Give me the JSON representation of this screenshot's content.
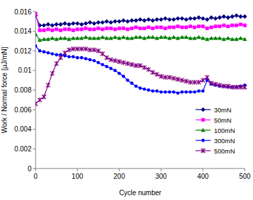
{
  "chart_data": {
    "type": "line",
    "x_label": "Cycle number",
    "y_label": "Work / Normal force [µJ/mN]",
    "x": [
      0,
      10,
      20,
      30,
      40,
      50,
      60,
      70,
      80,
      90,
      100,
      110,
      120,
      130,
      140,
      150,
      160,
      170,
      180,
      190,
      200,
      210,
      220,
      230,
      240,
      250,
      260,
      270,
      280,
      290,
      300,
      310,
      320,
      330,
      340,
      350,
      360,
      370,
      380,
      390,
      400,
      410,
      420,
      430,
      440,
      450,
      460,
      470,
      480,
      490,
      500
    ],
    "xlim": [
      0,
      500
    ],
    "xticks": [
      0,
      100,
      200,
      300,
      400,
      500
    ],
    "ylim": [
      0,
      0.016
    ],
    "yticks": [
      0,
      0.002,
      0.004,
      0.006,
      0.008,
      0.01,
      0.012,
      0.014,
      0.016
    ],
    "grid": false,
    "legend": "lower right",
    "series": [
      {
        "name": "30mN",
        "color": "#000080",
        "marker": "diamond",
        "line_style": "solid",
        "values": [
          0.0156,
          0.0146,
          0.0146,
          0.0147,
          0.0146,
          0.0147,
          0.0147,
          0.0148,
          0.0147,
          0.0148,
          0.0148,
          0.0147,
          0.0148,
          0.0149,
          0.0148,
          0.0149,
          0.0149,
          0.015,
          0.0149,
          0.015,
          0.015,
          0.0151,
          0.015,
          0.0151,
          0.0151,
          0.0152,
          0.0151,
          0.0152,
          0.0151,
          0.0152,
          0.0152,
          0.0153,
          0.0152,
          0.0152,
          0.0153,
          0.0153,
          0.0152,
          0.0153,
          0.0153,
          0.0154,
          0.0153,
          0.0152,
          0.0154,
          0.0153,
          0.0154,
          0.0155,
          0.0154,
          0.0155,
          0.0156,
          0.0155,
          0.0155
        ]
      },
      {
        "name": "50mN",
        "color": "#ff00ff",
        "marker": "square",
        "line_style": "solid",
        "values": [
          0.0158,
          0.0141,
          0.0141,
          0.0142,
          0.0141,
          0.0142,
          0.0141,
          0.0142,
          0.0142,
          0.0141,
          0.0142,
          0.0142,
          0.0143,
          0.0142,
          0.0142,
          0.0143,
          0.0142,
          0.0143,
          0.0143,
          0.0142,
          0.0143,
          0.0143,
          0.0142,
          0.0143,
          0.0144,
          0.0143,
          0.0143,
          0.0144,
          0.0143,
          0.0144,
          0.0144,
          0.0143,
          0.0144,
          0.0144,
          0.0145,
          0.0144,
          0.0144,
          0.0145,
          0.0144,
          0.0145,
          0.0145,
          0.0143,
          0.0144,
          0.0145,
          0.0145,
          0.0146,
          0.0145,
          0.0146,
          0.0146,
          0.0147,
          0.0146
        ]
      },
      {
        "name": "100mN",
        "color": "#008000",
        "marker": "triangle",
        "line_style": "solid",
        "values": [
          0.0137,
          0.0131,
          0.0132,
          0.0132,
          0.0133,
          0.0132,
          0.0133,
          0.0133,
          0.0132,
          0.0133,
          0.0133,
          0.0133,
          0.0134,
          0.0133,
          0.0133,
          0.0133,
          0.0134,
          0.0133,
          0.0133,
          0.0134,
          0.0133,
          0.0134,
          0.0133,
          0.0133,
          0.0134,
          0.0134,
          0.0133,
          0.0134,
          0.0134,
          0.0133,
          0.0134,
          0.0134,
          0.0133,
          0.0134,
          0.0133,
          0.0134,
          0.0134,
          0.0133,
          0.0133,
          0.0134,
          0.0133,
          0.0132,
          0.0133,
          0.0133,
          0.0133,
          0.0132,
          0.0133,
          0.0132,
          0.0132,
          0.0133,
          0.0132
        ]
      },
      {
        "name": "300mN",
        "color": "#0000ff",
        "marker": "circle",
        "line_style": "solid",
        "values": [
          0.0125,
          0.012,
          0.0119,
          0.0118,
          0.0117,
          0.0116,
          0.0116,
          0.0115,
          0.0114,
          0.0114,
          0.0113,
          0.0113,
          0.0112,
          0.0111,
          0.011,
          0.0108,
          0.0106,
          0.0104,
          0.0102,
          0.01,
          0.0097,
          0.0094,
          0.009,
          0.0087,
          0.0084,
          0.0082,
          0.0081,
          0.008,
          0.0079,
          0.0079,
          0.0078,
          0.0078,
          0.0078,
          0.0078,
          0.0077,
          0.0078,
          0.0078,
          0.0078,
          0.0078,
          0.0079,
          0.0079,
          0.009,
          0.0086,
          0.0085,
          0.0084,
          0.0084,
          0.0083,
          0.0083,
          0.0083,
          0.0084,
          0.0085
        ]
      },
      {
        "name": "500mN",
        "color": "#800080",
        "marker": "star",
        "line_style": "solid",
        "values": [
          0.0066,
          0.007,
          0.0073,
          0.0085,
          0.0097,
          0.0107,
          0.0113,
          0.0118,
          0.0121,
          0.0122,
          0.0122,
          0.0122,
          0.0122,
          0.0121,
          0.0121,
          0.012,
          0.0117,
          0.0113,
          0.0111,
          0.011,
          0.0109,
          0.0108,
          0.0107,
          0.0106,
          0.0105,
          0.0105,
          0.0103,
          0.0101,
          0.0098,
          0.0096,
          0.0094,
          0.0093,
          0.0093,
          0.0092,
          0.0091,
          0.009,
          0.0089,
          0.0088,
          0.0088,
          0.0088,
          0.009,
          0.0093,
          0.0087,
          0.0086,
          0.0085,
          0.0084,
          0.0084,
          0.0083,
          0.0083,
          0.0083,
          0.0083
        ]
      }
    ]
  }
}
